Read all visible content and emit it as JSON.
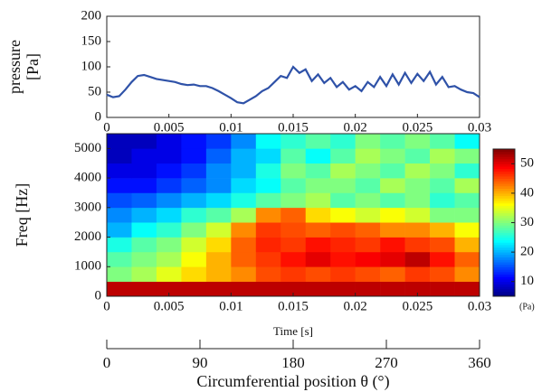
{
  "chart_data": [
    {
      "type": "line",
      "ylabel": [
        "pressure",
        "[Pa]"
      ],
      "x": [
        0,
        0.0005,
        0.001,
        0.0015,
        0.002,
        0.0025,
        0.003,
        0.0035,
        0.004,
        0.0045,
        0.005,
        0.0055,
        0.006,
        0.0065,
        0.007,
        0.0075,
        0.008,
        0.0085,
        0.009,
        0.0095,
        0.01,
        0.0105,
        0.011,
        0.0115,
        0.012,
        0.0125,
        0.013,
        0.0135,
        0.014,
        0.0145,
        0.015,
        0.0155,
        0.016,
        0.0165,
        0.017,
        0.0175,
        0.018,
        0.0185,
        0.019,
        0.0195,
        0.02,
        0.0205,
        0.021,
        0.0215,
        0.022,
        0.0225,
        0.023,
        0.0235,
        0.024,
        0.0245,
        0.025,
        0.0255,
        0.026,
        0.0265,
        0.027,
        0.0275,
        0.028,
        0.0285,
        0.029,
        0.0295,
        0.03
      ],
      "values": [
        45,
        40,
        42,
        55,
        70,
        82,
        84,
        80,
        76,
        74,
        72,
        70,
        66,
        64,
        65,
        62,
        62,
        58,
        52,
        45,
        38,
        30,
        28,
        35,
        42,
        52,
        58,
        70,
        82,
        78,
        100,
        88,
        95,
        72,
        85,
        68,
        78,
        60,
        70,
        55,
        62,
        52,
        70,
        60,
        80,
        62,
        85,
        65,
        88,
        68,
        86,
        72,
        90,
        65,
        80,
        60,
        62,
        55,
        50,
        48,
        40
      ],
      "color": "#2f52a8",
      "xlim": [
        0,
        0.03
      ],
      "xticks": [
        0,
        0.005,
        0.01,
        0.015,
        0.02,
        0.025,
        0.03
      ],
      "ylim": [
        0,
        200
      ],
      "yticks": [
        0,
        50,
        100,
        150,
        200
      ]
    },
    {
      "type": "heatmap",
      "xlabel": "Time [s]",
      "ylabel": "Freq [Hz]",
      "x_bins": [
        0,
        0.002,
        0.004,
        0.006,
        0.008,
        0.01,
        0.012,
        0.014,
        0.016,
        0.018,
        0.02,
        0.022,
        0.024,
        0.026,
        0.028,
        0.03
      ],
      "y_bins": [
        0,
        500,
        1000,
        1500,
        2000,
        2500,
        3000,
        3500,
        4000,
        4500,
        5000,
        5500
      ],
      "z": [
        [
          52,
          52,
          52,
          52,
          52,
          52,
          52,
          52,
          52,
          52,
          52,
          52,
          52,
          52,
          52
        ],
        [
          30,
          32,
          35,
          38,
          40,
          42,
          45,
          46,
          45,
          46,
          45,
          44,
          46,
          45,
          42
        ],
        [
          28,
          30,
          32,
          36,
          40,
          44,
          46,
          48,
          50,
          48,
          49,
          50,
          52,
          48,
          44
        ],
        [
          25,
          28,
          30,
          34,
          38,
          44,
          47,
          46,
          48,
          47,
          46,
          48,
          46,
          45,
          40
        ],
        [
          20,
          24,
          26,
          30,
          34,
          42,
          46,
          45,
          44,
          45,
          44,
          42,
          42,
          40,
          36
        ],
        [
          18,
          20,
          22,
          26,
          28,
          32,
          42,
          44,
          38,
          36,
          34,
          36,
          34,
          30,
          30
        ],
        [
          15,
          16,
          18,
          20,
          22,
          25,
          28,
          30,
          32,
          28,
          30,
          28,
          30,
          26,
          28
        ],
        [
          12,
          12,
          14,
          16,
          18,
          22,
          24,
          28,
          30,
          30,
          28,
          32,
          30,
          28,
          32
        ],
        [
          10,
          10,
          12,
          14,
          18,
          20,
          25,
          30,
          28,
          32,
          30,
          28,
          32,
          30,
          26
        ],
        [
          8,
          10,
          10,
          12,
          16,
          20,
          22,
          28,
          24,
          28,
          32,
          30,
          28,
          32,
          30
        ],
        [
          8,
          8,
          10,
          12,
          14,
          18,
          24,
          26,
          28,
          26,
          30,
          28,
          30,
          28,
          24
        ]
      ],
      "colormap": "jet",
      "xlim": [
        0,
        0.03
      ],
      "xticks": [
        0,
        0.005,
        0.01,
        0.015,
        0.02,
        0.025,
        0.03
      ],
      "ylim": [
        0,
        5500
      ],
      "yticks": [
        0,
        1000,
        2000,
        3000,
        4000,
        5000
      ],
      "zlim": [
        5,
        55
      ],
      "zticks": [
        10,
        20,
        30,
        40,
        50
      ],
      "zlabel": "(Pa)",
      "x2lim": [
        0,
        360
      ],
      "x2ticks": [
        0,
        90,
        180,
        270,
        360
      ],
      "x2label": "Circumferential position θ (°)"
    }
  ]
}
